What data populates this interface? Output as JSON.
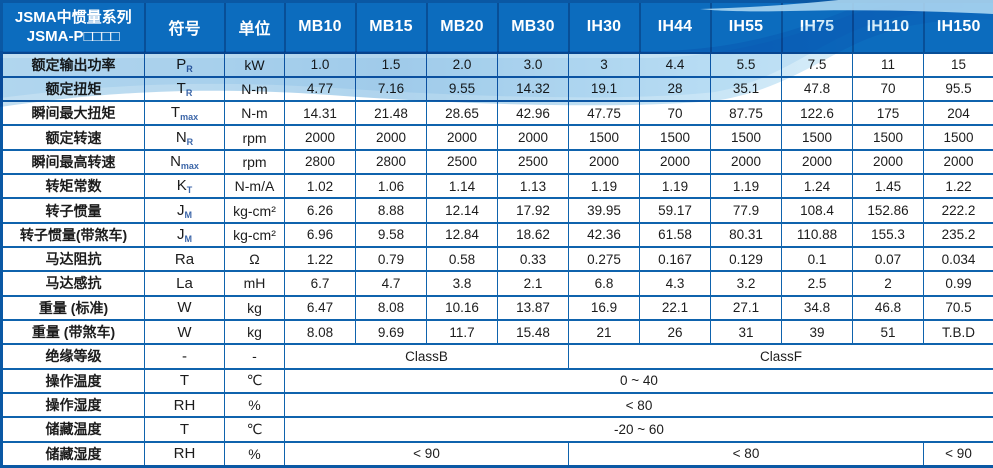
{
  "table": {
    "title_line1": "JSMA中惯量系列",
    "title_line2": "JSMA-P□□□□",
    "col_symbol": "符号",
    "col_unit": "单位",
    "models": [
      "MB10",
      "MB15",
      "MB20",
      "MB30",
      "IH30",
      "IH44",
      "IH55",
      "IH75",
      "IH110",
      "IH150"
    ],
    "rows": [
      {
        "label": "额定输出功率",
        "sym": "P",
        "sub": "R",
        "unit": "kW",
        "values": [
          "1.0",
          "1.5",
          "2.0",
          "3.0",
          "3",
          "4.4",
          "5.5",
          "7.5",
          "11",
          "15"
        ]
      },
      {
        "label": "额定扭矩",
        "sym": "T",
        "sub": "R",
        "unit": "N-m",
        "values": [
          "4.77",
          "7.16",
          "9.55",
          "14.32",
          "19.1",
          "28",
          "35.1",
          "47.8",
          "70",
          "95.5"
        ]
      },
      {
        "label": "瞬间最大扭矩",
        "sym": "T",
        "sub": "max",
        "unit": "N-m",
        "values": [
          "14.31",
          "21.48",
          "28.65",
          "42.96",
          "47.75",
          "70",
          "87.75",
          "122.6",
          "175",
          "204"
        ]
      },
      {
        "label": "额定转速",
        "sym": "N",
        "sub": "R",
        "unit": "rpm",
        "values": [
          "2000",
          "2000",
          "2000",
          "2000",
          "1500",
          "1500",
          "1500",
          "1500",
          "1500",
          "1500"
        ]
      },
      {
        "label": "瞬间最高转速",
        "sym": "N",
        "sub": "max",
        "unit": "rpm",
        "values": [
          "2800",
          "2800",
          "2500",
          "2500",
          "2000",
          "2000",
          "2000",
          "2000",
          "2000",
          "2000"
        ]
      },
      {
        "label": "转矩常数",
        "sym": "K",
        "sub": "T",
        "unit": "N-m/A",
        "values": [
          "1.02",
          "1.06",
          "1.14",
          "1.13",
          "1.19",
          "1.19",
          "1.19",
          "1.24",
          "1.45",
          "1.22"
        ]
      },
      {
        "label": "转子惯量",
        "sym": "J",
        "sub": "M",
        "unit": "kg-cm²",
        "values": [
          "6.26",
          "8.88",
          "12.14",
          "17.92",
          "39.95",
          "59.17",
          "77.9",
          "108.4",
          "152.86",
          "222.2"
        ]
      },
      {
        "label": "转子惯量(带煞车)",
        "sym": "J",
        "sub": "M",
        "unit": "kg-cm²",
        "values": [
          "6.96",
          "9.58",
          "12.84",
          "18.62",
          "42.36",
          "61.58",
          "80.31",
          "110.88",
          "155.3",
          "235.2"
        ]
      },
      {
        "label": "马达阻抗",
        "sym": "Ra",
        "sub": "",
        "unit": "Ω",
        "values": [
          "1.22",
          "0.79",
          "0.58",
          "0.33",
          "0.275",
          "0.167",
          "0.129",
          "0.1",
          "0.07",
          "0.034"
        ]
      },
      {
        "label": "马达感抗",
        "sym": "La",
        "sub": "",
        "unit": "mH",
        "values": [
          "6.7",
          "4.7",
          "3.8",
          "2.1",
          "6.8",
          "4.3",
          "3.2",
          "2.5",
          "2",
          "0.99"
        ]
      },
      {
        "label": "重量 (标准)",
        "sym": "W",
        "sub": "",
        "unit": "kg",
        "values": [
          "6.47",
          "8.08",
          "10.16",
          "13.87",
          "16.9",
          "22.1",
          "27.1",
          "34.8",
          "46.8",
          "70.5"
        ]
      },
      {
        "label": "重量 (带煞车)",
        "sym": "W",
        "sub": "",
        "unit": "kg",
        "values": [
          "8.08",
          "9.69",
          "11.7",
          "15.48",
          "21",
          "26",
          "31",
          "39",
          "51",
          "T.B.D"
        ]
      },
      {
        "label": "绝缘等级",
        "sym": "-",
        "sub": "",
        "unit": "-",
        "spans": [
          {
            "text": "ClassB",
            "span": 4
          },
          {
            "text": "ClassF",
            "span": 6
          }
        ]
      },
      {
        "label": "操作温度",
        "sym": "T",
        "sub": "",
        "unit": "℃",
        "spans": [
          {
            "text": "0 ~ 40",
            "span": 10
          }
        ]
      },
      {
        "label": "操作湿度",
        "sym": "RH",
        "sub": "",
        "unit": "%",
        "spans": [
          {
            "text": "< 80",
            "span": 10
          }
        ]
      },
      {
        "label": "储藏温度",
        "sym": "T",
        "sub": "",
        "unit": "℃",
        "spans": [
          {
            "text": "-20 ~ 60",
            "span": 10
          }
        ]
      },
      {
        "label": "储藏湿度",
        "sym": "RH",
        "sub": "",
        "unit": "%",
        "spans": [
          {
            "text": "< 90",
            "span": 4
          },
          {
            "text": "< 80",
            "span": 5
          },
          {
            "text": "< 90",
            "span": 1
          }
        ]
      }
    ],
    "colors": {
      "header_bg": "#0c6cbe",
      "header_border": "#084f97",
      "grid_line": "#0f63ad",
      "outer_border": "#0a58a4",
      "wave_light_blue": "#86bfe4",
      "wave_highlight": "#cde9f8"
    }
  }
}
